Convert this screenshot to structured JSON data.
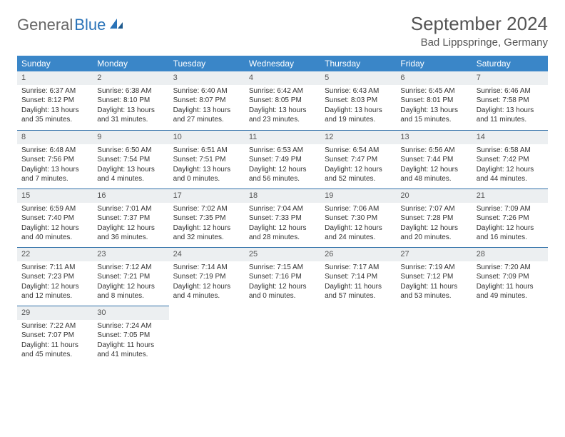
{
  "logo": {
    "text1": "General",
    "text2": "Blue"
  },
  "title": "September 2024",
  "location": "Bad Lippspringe, Germany",
  "colors": {
    "header_bg": "#3a86c8",
    "daynum_bg": "#eceff1",
    "row_divider": "#2f6fa8"
  },
  "weekdays": [
    "Sunday",
    "Monday",
    "Tuesday",
    "Wednesday",
    "Thursday",
    "Friday",
    "Saturday"
  ],
  "weeks": [
    [
      {
        "n": "1",
        "sr": "Sunrise: 6:37 AM",
        "ss": "Sunset: 8:12 PM",
        "dl1": "Daylight: 13 hours",
        "dl2": "and 35 minutes."
      },
      {
        "n": "2",
        "sr": "Sunrise: 6:38 AM",
        "ss": "Sunset: 8:10 PM",
        "dl1": "Daylight: 13 hours",
        "dl2": "and 31 minutes."
      },
      {
        "n": "3",
        "sr": "Sunrise: 6:40 AM",
        "ss": "Sunset: 8:07 PM",
        "dl1": "Daylight: 13 hours",
        "dl2": "and 27 minutes."
      },
      {
        "n": "4",
        "sr": "Sunrise: 6:42 AM",
        "ss": "Sunset: 8:05 PM",
        "dl1": "Daylight: 13 hours",
        "dl2": "and 23 minutes."
      },
      {
        "n": "5",
        "sr": "Sunrise: 6:43 AM",
        "ss": "Sunset: 8:03 PM",
        "dl1": "Daylight: 13 hours",
        "dl2": "and 19 minutes."
      },
      {
        "n": "6",
        "sr": "Sunrise: 6:45 AM",
        "ss": "Sunset: 8:01 PM",
        "dl1": "Daylight: 13 hours",
        "dl2": "and 15 minutes."
      },
      {
        "n": "7",
        "sr": "Sunrise: 6:46 AM",
        "ss": "Sunset: 7:58 PM",
        "dl1": "Daylight: 13 hours",
        "dl2": "and 11 minutes."
      }
    ],
    [
      {
        "n": "8",
        "sr": "Sunrise: 6:48 AM",
        "ss": "Sunset: 7:56 PM",
        "dl1": "Daylight: 13 hours",
        "dl2": "and 7 minutes."
      },
      {
        "n": "9",
        "sr": "Sunrise: 6:50 AM",
        "ss": "Sunset: 7:54 PM",
        "dl1": "Daylight: 13 hours",
        "dl2": "and 4 minutes."
      },
      {
        "n": "10",
        "sr": "Sunrise: 6:51 AM",
        "ss": "Sunset: 7:51 PM",
        "dl1": "Daylight: 13 hours",
        "dl2": "and 0 minutes."
      },
      {
        "n": "11",
        "sr": "Sunrise: 6:53 AM",
        "ss": "Sunset: 7:49 PM",
        "dl1": "Daylight: 12 hours",
        "dl2": "and 56 minutes."
      },
      {
        "n": "12",
        "sr": "Sunrise: 6:54 AM",
        "ss": "Sunset: 7:47 PM",
        "dl1": "Daylight: 12 hours",
        "dl2": "and 52 minutes."
      },
      {
        "n": "13",
        "sr": "Sunrise: 6:56 AM",
        "ss": "Sunset: 7:44 PM",
        "dl1": "Daylight: 12 hours",
        "dl2": "and 48 minutes."
      },
      {
        "n": "14",
        "sr": "Sunrise: 6:58 AM",
        "ss": "Sunset: 7:42 PM",
        "dl1": "Daylight: 12 hours",
        "dl2": "and 44 minutes."
      }
    ],
    [
      {
        "n": "15",
        "sr": "Sunrise: 6:59 AM",
        "ss": "Sunset: 7:40 PM",
        "dl1": "Daylight: 12 hours",
        "dl2": "and 40 minutes."
      },
      {
        "n": "16",
        "sr": "Sunrise: 7:01 AM",
        "ss": "Sunset: 7:37 PM",
        "dl1": "Daylight: 12 hours",
        "dl2": "and 36 minutes."
      },
      {
        "n": "17",
        "sr": "Sunrise: 7:02 AM",
        "ss": "Sunset: 7:35 PM",
        "dl1": "Daylight: 12 hours",
        "dl2": "and 32 minutes."
      },
      {
        "n": "18",
        "sr": "Sunrise: 7:04 AM",
        "ss": "Sunset: 7:33 PM",
        "dl1": "Daylight: 12 hours",
        "dl2": "and 28 minutes."
      },
      {
        "n": "19",
        "sr": "Sunrise: 7:06 AM",
        "ss": "Sunset: 7:30 PM",
        "dl1": "Daylight: 12 hours",
        "dl2": "and 24 minutes."
      },
      {
        "n": "20",
        "sr": "Sunrise: 7:07 AM",
        "ss": "Sunset: 7:28 PM",
        "dl1": "Daylight: 12 hours",
        "dl2": "and 20 minutes."
      },
      {
        "n": "21",
        "sr": "Sunrise: 7:09 AM",
        "ss": "Sunset: 7:26 PM",
        "dl1": "Daylight: 12 hours",
        "dl2": "and 16 minutes."
      }
    ],
    [
      {
        "n": "22",
        "sr": "Sunrise: 7:11 AM",
        "ss": "Sunset: 7:23 PM",
        "dl1": "Daylight: 12 hours",
        "dl2": "and 12 minutes."
      },
      {
        "n": "23",
        "sr": "Sunrise: 7:12 AM",
        "ss": "Sunset: 7:21 PM",
        "dl1": "Daylight: 12 hours",
        "dl2": "and 8 minutes."
      },
      {
        "n": "24",
        "sr": "Sunrise: 7:14 AM",
        "ss": "Sunset: 7:19 PM",
        "dl1": "Daylight: 12 hours",
        "dl2": "and 4 minutes."
      },
      {
        "n": "25",
        "sr": "Sunrise: 7:15 AM",
        "ss": "Sunset: 7:16 PM",
        "dl1": "Daylight: 12 hours",
        "dl2": "and 0 minutes."
      },
      {
        "n": "26",
        "sr": "Sunrise: 7:17 AM",
        "ss": "Sunset: 7:14 PM",
        "dl1": "Daylight: 11 hours",
        "dl2": "and 57 minutes."
      },
      {
        "n": "27",
        "sr": "Sunrise: 7:19 AM",
        "ss": "Sunset: 7:12 PM",
        "dl1": "Daylight: 11 hours",
        "dl2": "and 53 minutes."
      },
      {
        "n": "28",
        "sr": "Sunrise: 7:20 AM",
        "ss": "Sunset: 7:09 PM",
        "dl1": "Daylight: 11 hours",
        "dl2": "and 49 minutes."
      }
    ],
    [
      {
        "n": "29",
        "sr": "Sunrise: 7:22 AM",
        "ss": "Sunset: 7:07 PM",
        "dl1": "Daylight: 11 hours",
        "dl2": "and 45 minutes."
      },
      {
        "n": "30",
        "sr": "Sunrise: 7:24 AM",
        "ss": "Sunset: 7:05 PM",
        "dl1": "Daylight: 11 hours",
        "dl2": "and 41 minutes."
      },
      null,
      null,
      null,
      null,
      null
    ]
  ]
}
